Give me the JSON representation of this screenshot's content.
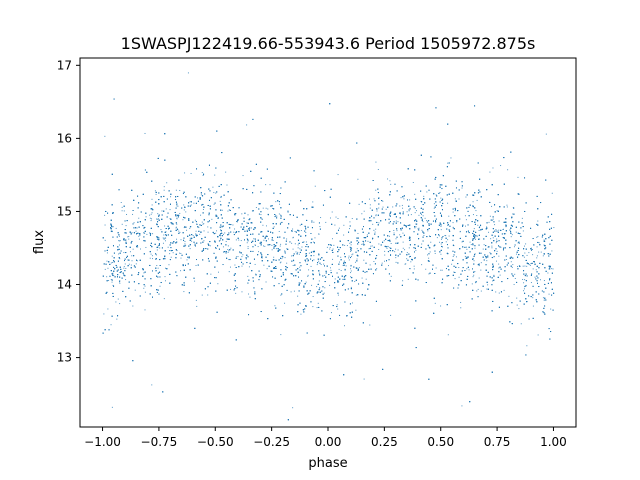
{
  "chart_data": {
    "type": "scatter",
    "title": "1SWASPJ122419.66-553943.6 Period 1505972.875s",
    "xlabel": "phase",
    "ylabel": "flux",
    "xlim": [
      -1.1,
      1.1
    ],
    "ylim": [
      12.05,
      17.1
    ],
    "x_ticks": [
      -1.0,
      -0.75,
      -0.5,
      -0.25,
      0.0,
      0.25,
      0.5,
      0.75,
      1.0
    ],
    "x_tick_labels": [
      "−1.00",
      "−0.75",
      "−0.50",
      "−0.25",
      "0.00",
      "0.25",
      "0.50",
      "0.75",
      "1.00"
    ],
    "y_ticks": [
      13,
      14,
      15,
      16,
      17
    ],
    "y_tick_labels": [
      "13",
      "14",
      "15",
      "16",
      "17"
    ],
    "grid": false,
    "point_color": "#1f77b4",
    "phase_range": [
      -1.0,
      1.0
    ],
    "envelope": {
      "phase": [
        0.0,
        0.05,
        0.1,
        0.15,
        0.2,
        0.25,
        0.3,
        0.35,
        0.4,
        0.45,
        0.5,
        0.55,
        0.6,
        0.65,
        0.7,
        0.75,
        0.8,
        0.85,
        0.9,
        0.95,
        1.0
      ],
      "center_flux": [
        14.3,
        14.35,
        14.45,
        14.55,
        14.6,
        14.7,
        14.75,
        14.7,
        14.75,
        14.8,
        14.8,
        14.65,
        14.55,
        14.6,
        14.5,
        14.6,
        14.5,
        14.3,
        14.3,
        14.3,
        14.3
      ],
      "spread": [
        0.45,
        0.5,
        0.45,
        0.45,
        0.45,
        0.5,
        0.45,
        0.45,
        0.45,
        0.5,
        0.5,
        0.45,
        0.45,
        0.45,
        0.5,
        0.45,
        0.45,
        0.45,
        0.45,
        0.45,
        0.45
      ]
    }
  }
}
